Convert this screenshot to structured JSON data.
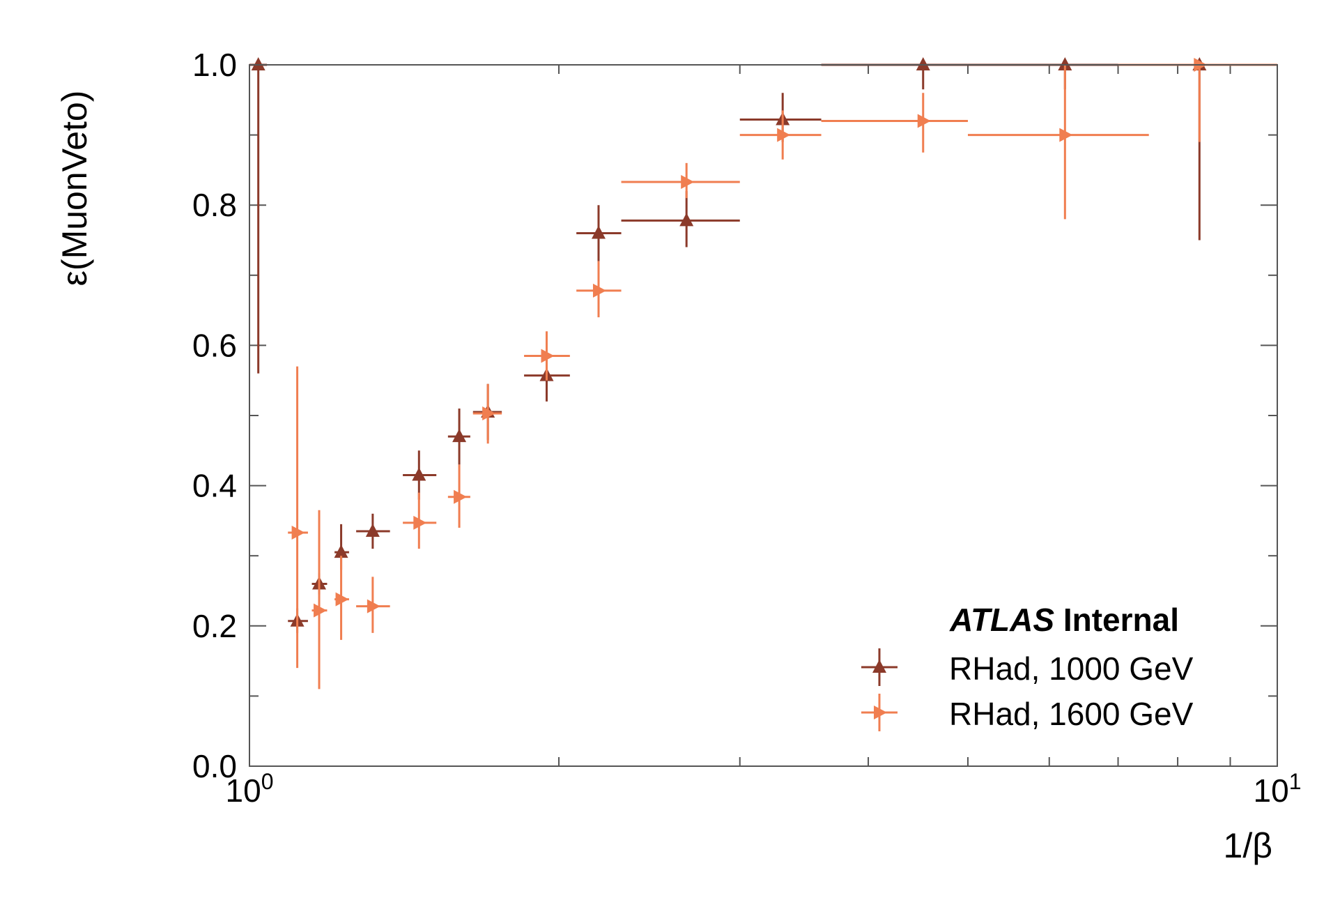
{
  "chart_data": {
    "type": "scatter",
    "xscale": "log",
    "xlim": [
      1,
      10
    ],
    "ylim": [
      0,
      1
    ],
    "xlabel": "1/β",
    "ylabel": "ε(MuonVeto)",
    "yticks": [
      "0.0",
      "0.2",
      "0.4",
      "0.6",
      "0.8",
      "1.0"
    ],
    "xticks": [
      {
        "base": "10",
        "exp": "0"
      },
      {
        "base": "10",
        "exp": "1"
      }
    ],
    "grid": false,
    "legend_position": "lower-right",
    "annotation": {
      "bold_italic": "ATLAS",
      "bold": "Internal"
    },
    "series": [
      {
        "name": "RHad, 1000 GeV",
        "color": "#8b3a2a",
        "marker": "triangle-up",
        "points": [
          {
            "x": 1.02,
            "y": 1.0,
            "xlo": 1.0,
            "xhi": 1.04,
            "ylo": 0.56,
            "yhi": 1.0
          },
          {
            "x": 1.113,
            "y": 0.207,
            "xlo": 1.09,
            "xhi": 1.14,
            "ylo": 0.19,
            "yhi": 0.225
          },
          {
            "x": 1.169,
            "y": 0.26,
            "xlo": 1.15,
            "xhi": 1.19,
            "ylo": 0.245,
            "yhi": 0.275
          },
          {
            "x": 1.228,
            "y": 0.305,
            "xlo": 1.21,
            "xhi": 1.25,
            "ylo": 0.28,
            "yhi": 0.345
          },
          {
            "x": 1.318,
            "y": 0.335,
            "xlo": 1.27,
            "xhi": 1.37,
            "ylo": 0.31,
            "yhi": 0.36
          },
          {
            "x": 1.462,
            "y": 0.415,
            "xlo": 1.41,
            "xhi": 1.52,
            "ylo": 0.38,
            "yhi": 0.45
          },
          {
            "x": 1.6,
            "y": 0.47,
            "xlo": 1.56,
            "xhi": 1.64,
            "ylo": 0.43,
            "yhi": 0.51
          },
          {
            "x": 1.706,
            "y": 0.505,
            "xlo": 1.65,
            "xhi": 1.76,
            "ylo": 0.465,
            "yhi": 0.545
          },
          {
            "x": 1.946,
            "y": 0.557,
            "xlo": 1.85,
            "xhi": 2.05,
            "ylo": 0.52,
            "yhi": 0.59
          },
          {
            "x": 2.186,
            "y": 0.76,
            "xlo": 2.08,
            "xhi": 2.3,
            "ylo": 0.72,
            "yhi": 0.8
          },
          {
            "x": 2.662,
            "y": 0.778,
            "xlo": 2.3,
            "xhi": 3.0,
            "ylo": 0.74,
            "yhi": 0.82
          },
          {
            "x": 3.302,
            "y": 0.922,
            "xlo": 3.0,
            "xhi": 3.6,
            "ylo": 0.89,
            "yhi": 0.96
          },
          {
            "x": 4.523,
            "y": 1.0,
            "xlo": 3.6,
            "xhi": 5.0,
            "ylo": 0.965,
            "yhi": 1.0
          },
          {
            "x": 6.215,
            "y": 1.0,
            "xlo": 5.0,
            "xhi": 7.5,
            "ylo": 0.965,
            "yhi": 1.0
          },
          {
            "x": 8.4,
            "y": 1.0,
            "xlo": 7.0,
            "xhi": 10.0,
            "ylo": 0.75,
            "yhi": 1.0
          }
        ]
      },
      {
        "name": "RHad, 1600 GeV",
        "color": "#f07e50",
        "marker": "triangle-right",
        "points": [
          {
            "x": 1.113,
            "y": 0.333,
            "xlo": 1.09,
            "xhi": 1.14,
            "ylo": 0.14,
            "yhi": 0.57
          },
          {
            "x": 1.169,
            "y": 0.222,
            "xlo": 1.15,
            "xhi": 1.19,
            "ylo": 0.11,
            "yhi": 0.365
          },
          {
            "x": 1.228,
            "y": 0.238,
            "xlo": 1.21,
            "xhi": 1.25,
            "ylo": 0.18,
            "yhi": 0.3
          },
          {
            "x": 1.318,
            "y": 0.228,
            "xlo": 1.27,
            "xhi": 1.37,
            "ylo": 0.19,
            "yhi": 0.27
          },
          {
            "x": 1.462,
            "y": 0.347,
            "xlo": 1.41,
            "xhi": 1.52,
            "ylo": 0.31,
            "yhi": 0.39
          },
          {
            "x": 1.6,
            "y": 0.384,
            "xlo": 1.56,
            "xhi": 1.64,
            "ylo": 0.34,
            "yhi": 0.43
          },
          {
            "x": 1.706,
            "y": 0.503,
            "xlo": 1.65,
            "xhi": 1.76,
            "ylo": 0.46,
            "yhi": 0.545
          },
          {
            "x": 1.946,
            "y": 0.585,
            "xlo": 1.85,
            "xhi": 2.05,
            "ylo": 0.55,
            "yhi": 0.62
          },
          {
            "x": 2.186,
            "y": 0.678,
            "xlo": 2.08,
            "xhi": 2.3,
            "ylo": 0.64,
            "yhi": 0.72
          },
          {
            "x": 2.662,
            "y": 0.833,
            "xlo": 2.3,
            "xhi": 3.0,
            "ylo": 0.81,
            "yhi": 0.86
          },
          {
            "x": 3.302,
            "y": 0.9,
            "xlo": 3.0,
            "xhi": 3.6,
            "ylo": 0.865,
            "yhi": 0.935
          },
          {
            "x": 4.523,
            "y": 0.92,
            "xlo": 3.6,
            "xhi": 5.0,
            "ylo": 0.875,
            "yhi": 0.96
          },
          {
            "x": 6.215,
            "y": 0.9,
            "xlo": 5.0,
            "xhi": 7.5,
            "ylo": 0.78,
            "yhi": 1.0
          },
          {
            "x": 8.4,
            "y": 1.0,
            "xlo": 7.0,
            "xhi": 10.0,
            "ylo": 0.89,
            "yhi": 1.0
          }
        ]
      }
    ]
  }
}
